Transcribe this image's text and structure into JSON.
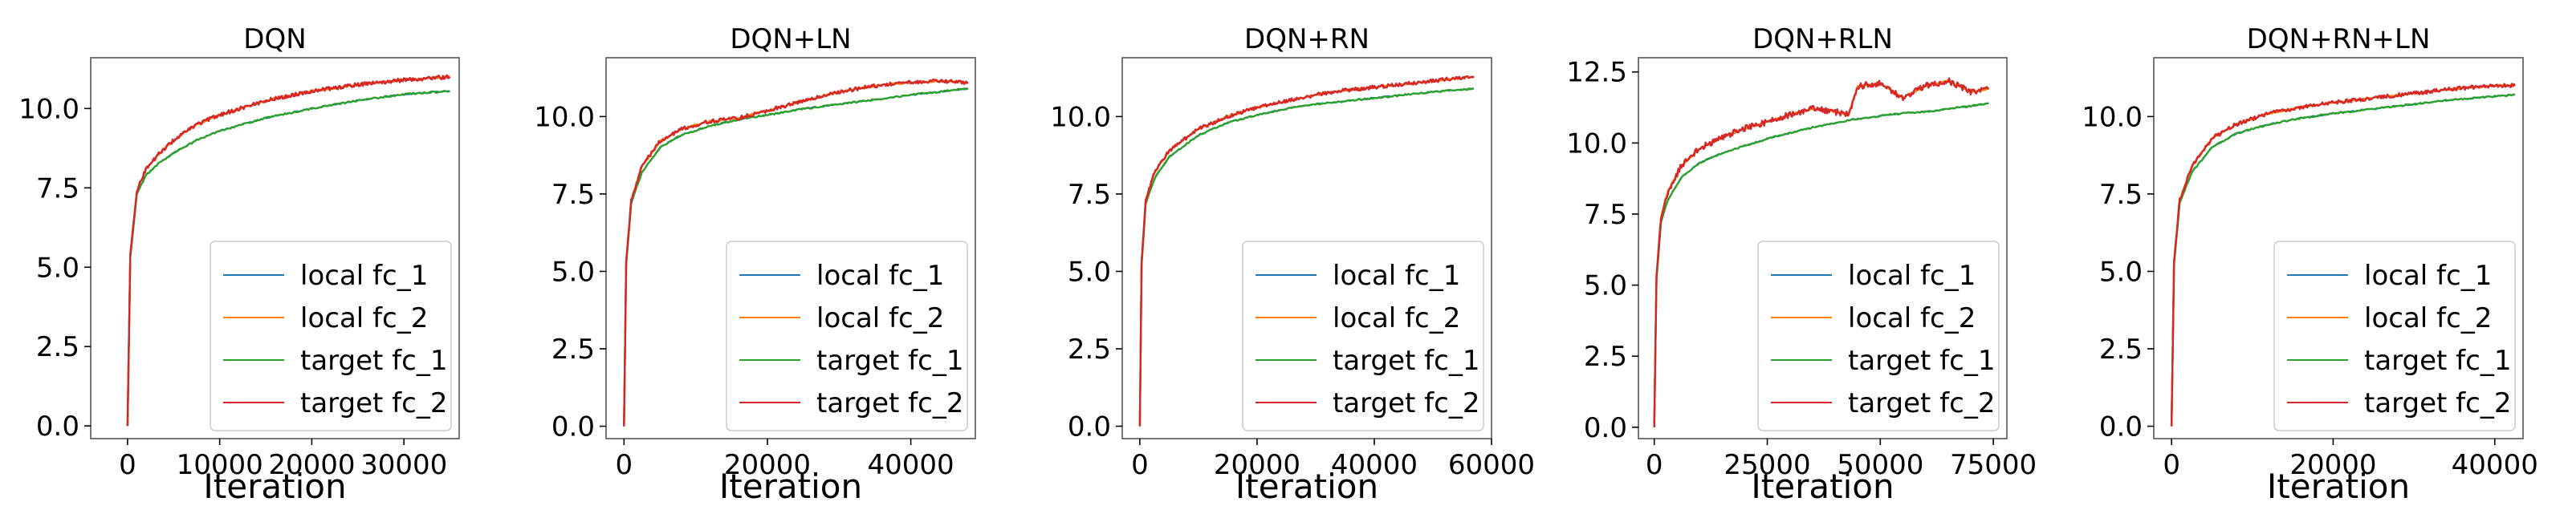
{
  "chart_data": [
    {
      "type": "line",
      "title": "DQN",
      "xlabel": "Iteration",
      "ylabel": "",
      "xlim": [
        -4000,
        36000
      ],
      "ylim": [
        -0.4,
        11.6
      ],
      "xticks": [
        0,
        10000,
        20000,
        30000
      ],
      "xtick_labels": [
        "0",
        "10000",
        "20000",
        "30000"
      ],
      "yticks": [
        0,
        2.5,
        5,
        7.5,
        10
      ],
      "ytick_labels": [
        "0.0",
        "2.5",
        "5.0",
        "7.5",
        "10.0"
      ],
      "legend_position": "lower-right",
      "x": [
        0,
        300,
        1000,
        2000,
        3500,
        5000,
        7500,
        10000,
        15000,
        20000,
        25000,
        30000,
        35000
      ],
      "series": [
        {
          "name": "local fc_1",
          "color": "#1f77b4",
          "values": [
            0,
            5.3,
            7.3,
            7.9,
            8.3,
            8.6,
            9.0,
            9.3,
            9.7,
            10.0,
            10.25,
            10.45,
            10.55
          ]
        },
        {
          "name": "local fc_2",
          "color": "#ff7f0e",
          "values": [
            0,
            5.4,
            7.4,
            8.1,
            8.6,
            9.0,
            9.5,
            9.8,
            10.25,
            10.55,
            10.75,
            10.9,
            11.0
          ]
        },
        {
          "name": "target fc_1",
          "color": "#2ca02c",
          "values": [
            0,
            5.3,
            7.3,
            7.9,
            8.3,
            8.6,
            9.0,
            9.3,
            9.7,
            10.0,
            10.25,
            10.45,
            10.55
          ]
        },
        {
          "name": "target fc_2",
          "color": "#d62728",
          "values": [
            0,
            5.4,
            7.4,
            8.1,
            8.6,
            9.0,
            9.5,
            9.8,
            10.25,
            10.55,
            10.75,
            10.9,
            11.0
          ]
        }
      ]
    },
    {
      "type": "line",
      "title": "DQN+LN",
      "xlabel": "Iteration",
      "ylabel": "",
      "xlim": [
        -2500,
        49000
      ],
      "ylim": [
        -0.4,
        11.9
      ],
      "xticks": [
        0,
        20000,
        40000
      ],
      "xtick_labels": [
        "0",
        "20000",
        "40000"
      ],
      "yticks": [
        0,
        2.5,
        5,
        7.5,
        10
      ],
      "ytick_labels": [
        "0.0",
        "2.5",
        "5.0",
        "7.5",
        "10.0"
      ],
      "legend_position": "lower-right",
      "x": [
        0,
        300,
        1000,
        2500,
        5000,
        8000,
        12000,
        16000,
        20000,
        25000,
        30000,
        35000,
        40000,
        44000,
        48000
      ],
      "series": [
        {
          "name": "local fc_1",
          "color": "#1f77b4",
          "values": [
            0,
            5.2,
            7.2,
            8.2,
            9.0,
            9.4,
            9.7,
            9.9,
            10.05,
            10.25,
            10.4,
            10.55,
            10.7,
            10.8,
            10.9
          ]
        },
        {
          "name": "local fc_2",
          "color": "#ff7f0e",
          "values": [
            0,
            5.3,
            7.3,
            8.4,
            9.2,
            9.6,
            9.85,
            9.95,
            10.2,
            10.5,
            10.8,
            11.0,
            11.1,
            11.15,
            11.1
          ]
        },
        {
          "name": "target fc_1",
          "color": "#2ca02c",
          "values": [
            0,
            5.2,
            7.2,
            8.2,
            9.0,
            9.4,
            9.7,
            9.9,
            10.05,
            10.25,
            10.4,
            10.55,
            10.7,
            10.8,
            10.9
          ]
        },
        {
          "name": "target fc_2",
          "color": "#d62728",
          "values": [
            0,
            5.3,
            7.3,
            8.4,
            9.2,
            9.6,
            9.85,
            9.95,
            10.2,
            10.5,
            10.8,
            11.0,
            11.1,
            11.15,
            11.1
          ]
        }
      ]
    },
    {
      "type": "line",
      "title": "DQN+RN",
      "xlabel": "Iteration",
      "ylabel": "",
      "xlim": [
        -3000,
        60000
      ],
      "ylim": [
        -0.4,
        11.9
      ],
      "xticks": [
        0,
        20000,
        40000,
        60000
      ],
      "xtick_labels": [
        "0",
        "20000",
        "40000",
        "60000"
      ],
      "yticks": [
        0,
        2.5,
        5,
        7.5,
        10
      ],
      "ytick_labels": [
        "0.0",
        "2.5",
        "5.0",
        "7.5",
        "10.0"
      ],
      "legend_position": "lower-right",
      "x": [
        0,
        300,
        1000,
        2500,
        5000,
        10000,
        15000,
        20000,
        25000,
        30000,
        35000,
        40000,
        45000,
        50000,
        57000
      ],
      "series": [
        {
          "name": "local fc_1",
          "color": "#1f77b4",
          "values": [
            0,
            5.2,
            7.2,
            8.0,
            8.7,
            9.4,
            9.8,
            10.05,
            10.25,
            10.4,
            10.5,
            10.6,
            10.7,
            10.8,
            10.9
          ]
        },
        {
          "name": "local fc_2",
          "color": "#ff7f0e",
          "values": [
            0,
            5.3,
            7.3,
            8.2,
            8.9,
            9.6,
            10.0,
            10.3,
            10.5,
            10.7,
            10.85,
            10.95,
            11.05,
            11.15,
            11.3
          ]
        },
        {
          "name": "target fc_1",
          "color": "#2ca02c",
          "values": [
            0,
            5.2,
            7.2,
            8.0,
            8.7,
            9.4,
            9.8,
            10.05,
            10.25,
            10.4,
            10.5,
            10.6,
            10.7,
            10.8,
            10.9
          ]
        },
        {
          "name": "target fc_2",
          "color": "#d62728",
          "values": [
            0,
            5.3,
            7.3,
            8.2,
            8.9,
            9.6,
            10.0,
            10.3,
            10.5,
            10.7,
            10.85,
            10.95,
            11.05,
            11.15,
            11.3
          ]
        }
      ]
    },
    {
      "type": "line",
      "title": "DQN+RLN",
      "xlabel": "Iteration",
      "ylabel": "",
      "xlim": [
        -3500,
        78000
      ],
      "ylim": [
        -0.4,
        13.0
      ],
      "xticks": [
        0,
        25000,
        50000,
        75000
      ],
      "xtick_labels": [
        "0",
        "25000",
        "50000",
        "75000"
      ],
      "yticks": [
        0,
        2.5,
        5,
        7.5,
        10,
        12.5
      ],
      "ytick_labels": [
        "0.0",
        "2.5",
        "5.0",
        "7.5",
        "10.0",
        "12.5"
      ],
      "legend_position": "lower-right",
      "x": [
        0,
        500,
        1500,
        3000,
        6000,
        10000,
        15000,
        20000,
        25000,
        30000,
        35000,
        40000,
        43000,
        45000,
        50000,
        55000,
        60000,
        65000,
        70000,
        74000
      ],
      "series": [
        {
          "name": "local fc_1",
          "color": "#1f77b4",
          "values": [
            0,
            5.2,
            7.2,
            8.0,
            8.8,
            9.3,
            9.65,
            9.9,
            10.15,
            10.35,
            10.55,
            10.7,
            10.8,
            10.85,
            10.95,
            11.05,
            11.1,
            11.2,
            11.3,
            11.4
          ]
        },
        {
          "name": "local fc_2",
          "color": "#ff7f0e",
          "values": [
            0,
            5.3,
            7.4,
            8.3,
            9.2,
            9.8,
            10.2,
            10.5,
            10.75,
            11.0,
            11.2,
            11.1,
            11.0,
            12.0,
            12.1,
            11.6,
            12.0,
            12.2,
            11.8,
            11.9
          ]
        },
        {
          "name": "target fc_1",
          "color": "#2ca02c",
          "values": [
            0,
            5.2,
            7.2,
            8.0,
            8.8,
            9.3,
            9.65,
            9.9,
            10.15,
            10.35,
            10.55,
            10.7,
            10.8,
            10.85,
            10.95,
            11.05,
            11.1,
            11.2,
            11.3,
            11.4
          ]
        },
        {
          "name": "target fc_2",
          "color": "#d62728",
          "values": [
            0,
            5.3,
            7.4,
            8.3,
            9.2,
            9.8,
            10.2,
            10.5,
            10.75,
            11.0,
            11.2,
            11.1,
            11.0,
            12.0,
            12.1,
            11.6,
            12.0,
            12.2,
            11.8,
            11.9
          ]
        }
      ]
    },
    {
      "type": "line",
      "title": "DQN+RN+LN",
      "xlabel": "Iteration",
      "ylabel": "",
      "xlim": [
        -2200,
        43500
      ],
      "ylim": [
        -0.4,
        11.9
      ],
      "xticks": [
        0,
        20000,
        40000
      ],
      "xtick_labels": [
        "0",
        "20000",
        "40000"
      ],
      "yticks": [
        0,
        2.5,
        5,
        7.5,
        10
      ],
      "ytick_labels": [
        "0.0",
        "2.5",
        "5.0",
        "7.5",
        "10.0"
      ],
      "legend_position": "lower-right",
      "x": [
        0,
        300,
        1000,
        2500,
        5000,
        8000,
        12000,
        16000,
        20000,
        25000,
        30000,
        35000,
        40000,
        42500
      ],
      "series": [
        {
          "name": "local fc_1",
          "color": "#1f77b4",
          "values": [
            0,
            5.2,
            7.2,
            8.2,
            9.0,
            9.45,
            9.75,
            9.95,
            10.1,
            10.25,
            10.4,
            10.55,
            10.65,
            10.7
          ]
        },
        {
          "name": "local fc_2",
          "color": "#ff7f0e",
          "values": [
            0,
            5.3,
            7.3,
            8.4,
            9.3,
            9.75,
            10.1,
            10.3,
            10.45,
            10.6,
            10.75,
            10.9,
            11.0,
            11.0
          ]
        },
        {
          "name": "target fc_1",
          "color": "#2ca02c",
          "values": [
            0,
            5.2,
            7.2,
            8.2,
            9.0,
            9.45,
            9.75,
            9.95,
            10.1,
            10.25,
            10.4,
            10.55,
            10.65,
            10.7
          ]
        },
        {
          "name": "target fc_2",
          "color": "#d62728",
          "values": [
            0,
            5.3,
            7.3,
            8.4,
            9.3,
            9.75,
            10.1,
            10.3,
            10.45,
            10.6,
            10.75,
            10.9,
            11.0,
            11.0
          ]
        }
      ]
    }
  ]
}
